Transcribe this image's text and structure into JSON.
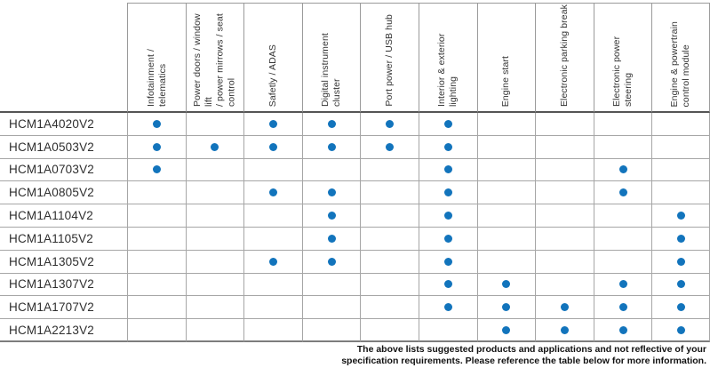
{
  "colors": {
    "dot": "#1274bc",
    "grid_line": "#a6a6a6",
    "header_underline": "#555555"
  },
  "table": {
    "columns": [
      {
        "label": "Infotainment / telematics"
      },
      {
        "label": "Power doors / window lift\n/ power mirrows / seat\ncontrol"
      },
      {
        "label": "Safetly / ADAS"
      },
      {
        "label": "Digital instrument cluster"
      },
      {
        "label": "Port power / USB hub"
      },
      {
        "label": "Interior & exterior lighting"
      },
      {
        "label": "Engine start"
      },
      {
        "label": "Electronic parking break"
      },
      {
        "label": "Electronic power steering"
      },
      {
        "label": "Engine & powertrain\ncontrol module"
      }
    ],
    "rows": [
      {
        "part": "HCM1A4020V2",
        "marks": [
          1,
          0,
          1,
          1,
          1,
          1,
          0,
          0,
          0,
          0
        ]
      },
      {
        "part": "HCM1A0503V2",
        "marks": [
          1,
          1,
          1,
          1,
          1,
          1,
          0,
          0,
          0,
          0
        ]
      },
      {
        "part": "HCM1A0703V2",
        "marks": [
          1,
          0,
          0,
          0,
          0,
          1,
          0,
          0,
          1,
          0
        ]
      },
      {
        "part": "HCM1A0805V2",
        "marks": [
          0,
          0,
          1,
          1,
          0,
          1,
          0,
          0,
          1,
          0
        ]
      },
      {
        "part": "HCM1A1104V2",
        "marks": [
          0,
          0,
          0,
          1,
          0,
          1,
          0,
          0,
          0,
          1
        ]
      },
      {
        "part": "HCM1A1105V2",
        "marks": [
          0,
          0,
          0,
          1,
          0,
          1,
          0,
          0,
          0,
          1
        ]
      },
      {
        "part": "HCM1A1305V2",
        "marks": [
          0,
          0,
          1,
          1,
          0,
          1,
          0,
          0,
          0,
          1
        ]
      },
      {
        "part": "HCM1A1307V2",
        "marks": [
          0,
          0,
          0,
          0,
          0,
          1,
          1,
          0,
          1,
          1
        ]
      },
      {
        "part": "HCM1A1707V2",
        "marks": [
          0,
          0,
          0,
          0,
          0,
          1,
          1,
          1,
          1,
          1
        ]
      },
      {
        "part": "HCM1A2213V2",
        "marks": [
          0,
          0,
          0,
          0,
          0,
          0,
          1,
          1,
          1,
          1
        ]
      }
    ]
  },
  "footer": {
    "line1": "The above lists suggested products and applications and not reflective of your",
    "line2": "specification requirements. Please reference the table below for more information."
  }
}
